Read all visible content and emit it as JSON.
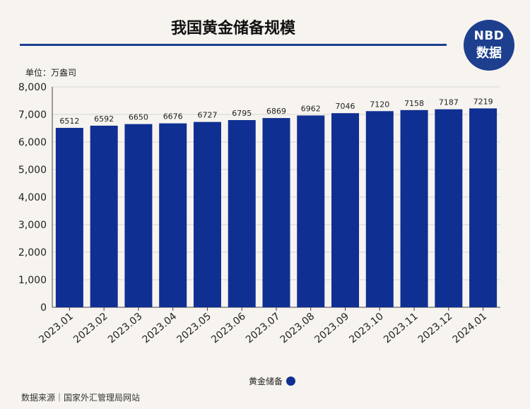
{
  "header": {
    "title": "我国黄金储备规模"
  },
  "logo": {
    "line1": "NBD",
    "line2": "数据"
  },
  "unit_label": "单位：万盎司",
  "source": "数据来源｜国家外汇管理局网站",
  "colors": {
    "bar": "#0f2f92",
    "accent": "#1b3f8f"
  },
  "chart_data": {
    "type": "bar",
    "title": "我国黄金储备规模",
    "categories": [
      "2023.01",
      "2023.02",
      "2023.03",
      "2023.04",
      "2023.05",
      "2023.06",
      "2023.07",
      "2023.08",
      "2023.09",
      "2023.10",
      "2023.11",
      "2023.12",
      "2024.01"
    ],
    "series": [
      {
        "name": "黄金储备",
        "values": [
          6512,
          6592,
          6650,
          6676,
          6727,
          6795,
          6869,
          6962,
          7046,
          7120,
          7158,
          7187,
          7219
        ]
      }
    ],
    "ylim": [
      0,
      8000
    ],
    "yticks": [
      "0",
      "1,000",
      "2,000",
      "3,000",
      "4,000",
      "5,000",
      "6,000",
      "7,000",
      "8,000"
    ],
    "grid": true,
    "legend": "bottom-center"
  }
}
